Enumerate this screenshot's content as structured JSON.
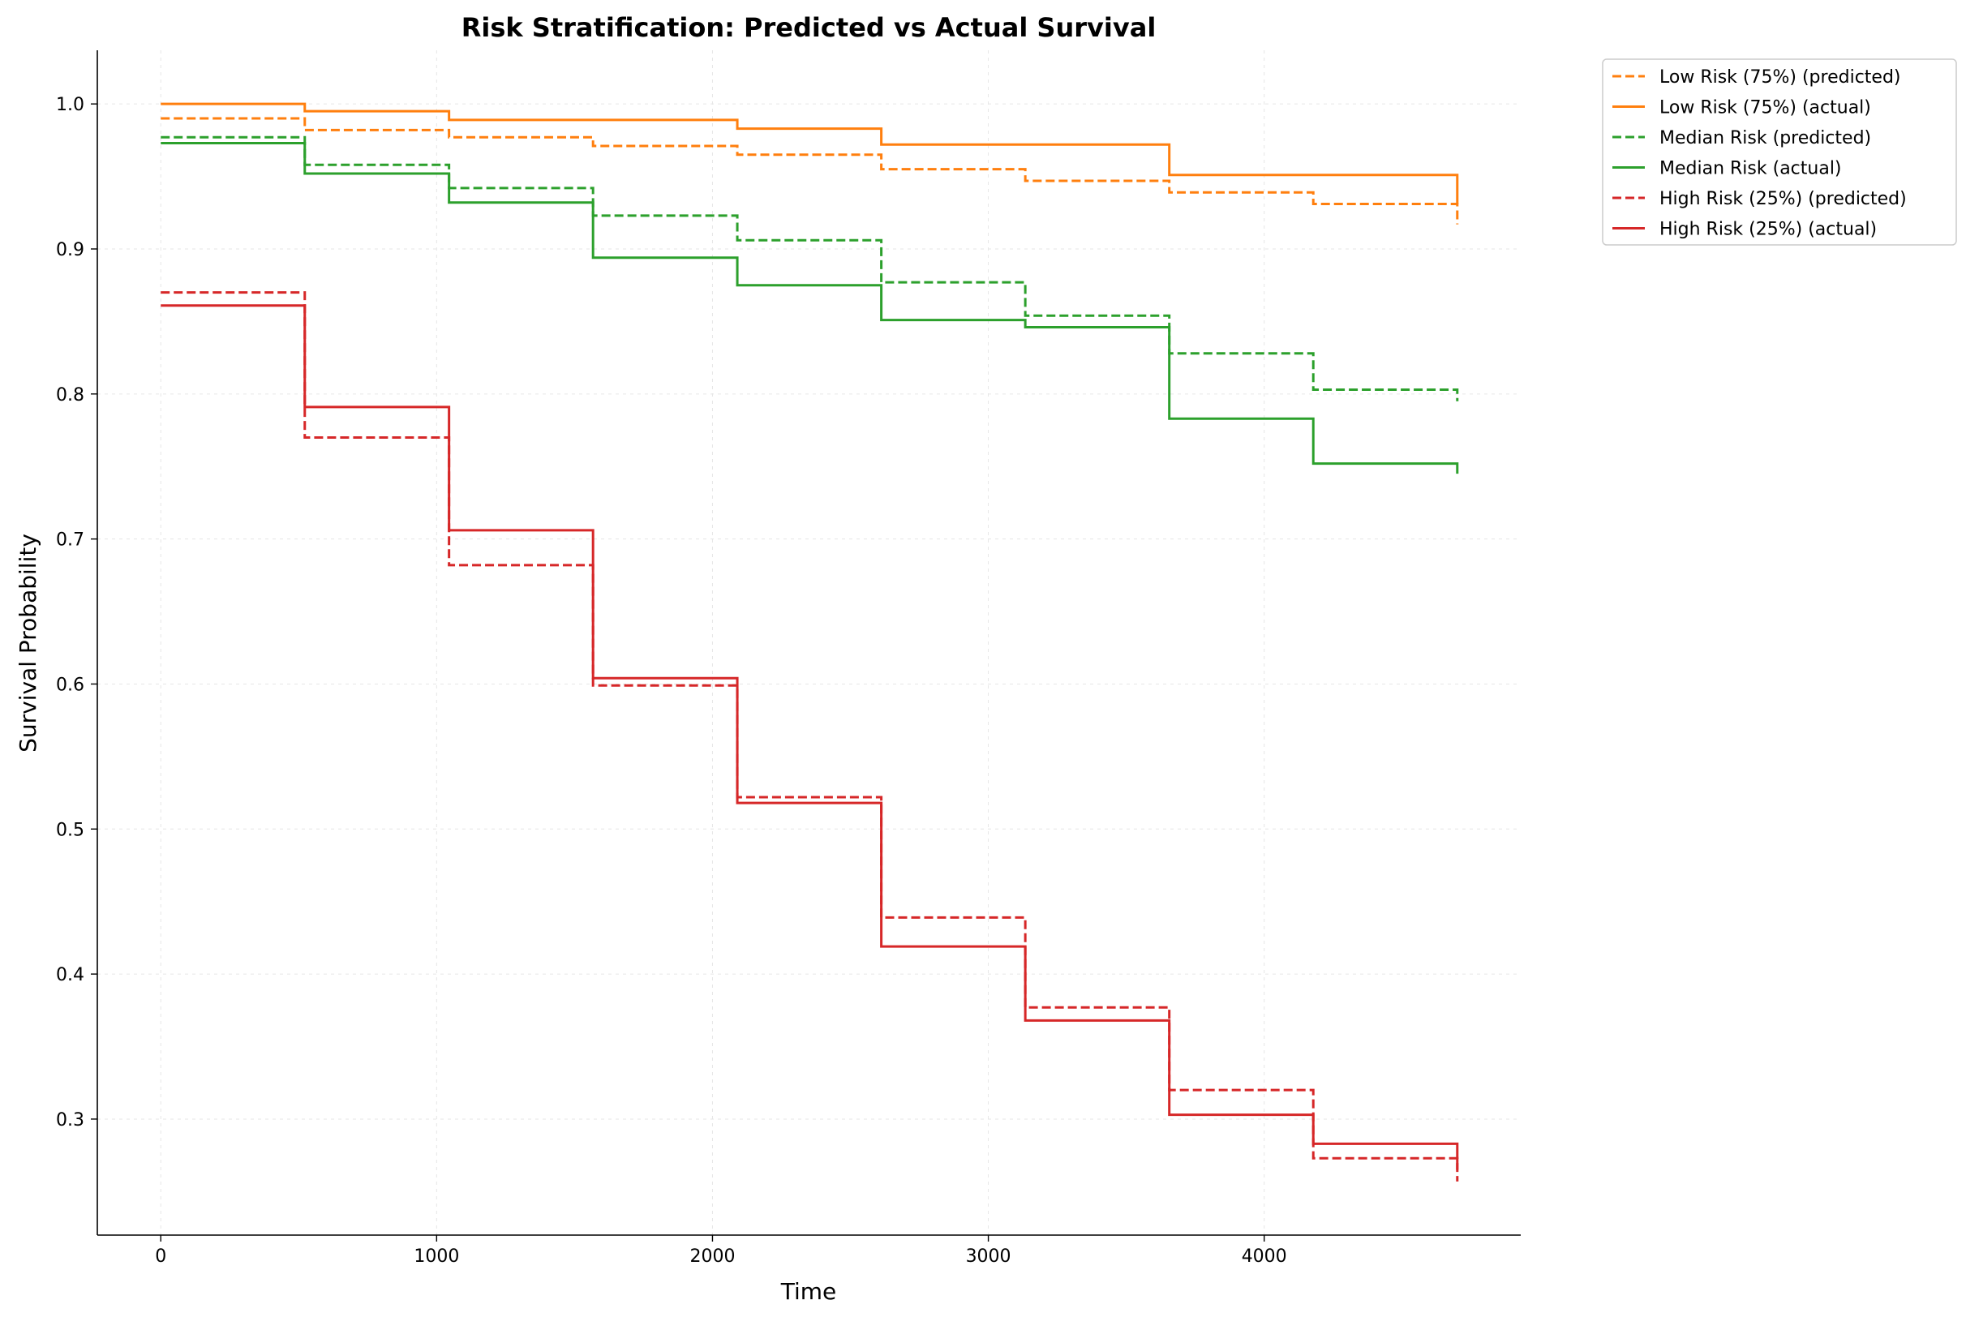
{
  "chart_data": {
    "type": "line",
    "step": "post",
    "title": "Risk Stratification: Predicted vs Actual Survival",
    "xlabel": "Time",
    "ylabel": "Survival Probability",
    "xlim": [
      -230,
      4930
    ],
    "ylim": [
      0.22,
      1.037
    ],
    "xticks": [
      0,
      1000,
      2000,
      3000,
      4000
    ],
    "yticks": [
      0.3,
      0.4,
      0.5,
      0.6,
      0.7,
      0.8,
      0.9,
      1.0
    ],
    "grid": true,
    "legend_position": "outside-top-right",
    "x": [
      0,
      522,
      1045,
      1567,
      2090,
      2612,
      3134,
      3656,
      4178,
      4700
    ],
    "series": [
      {
        "name": "Low Risk (75%) (predicted)",
        "color": "#ff7f0e",
        "style": "dashed",
        "y": [
          0.99,
          0.982,
          0.977,
          0.971,
          0.965,
          0.955,
          0.947,
          0.939,
          0.931,
          0.917
        ]
      },
      {
        "name": "Low Risk (75%) (actual)",
        "color": "#ff7f0e",
        "style": "solid",
        "y": [
          1.0,
          0.995,
          0.989,
          0.989,
          0.983,
          0.972,
          0.972,
          0.951,
          0.951,
          0.931
        ]
      },
      {
        "name": "Median Risk (predicted)",
        "color": "#2ca02c",
        "style": "dashed",
        "y": [
          0.977,
          0.958,
          0.942,
          0.923,
          0.906,
          0.877,
          0.854,
          0.828,
          0.803,
          0.795
        ]
      },
      {
        "name": "Median Risk (actual)",
        "color": "#2ca02c",
        "style": "solid",
        "y": [
          0.973,
          0.952,
          0.932,
          0.894,
          0.875,
          0.851,
          0.846,
          0.783,
          0.752,
          0.745
        ]
      },
      {
        "name": "High Risk (25%) (predicted)",
        "color": "#d62728",
        "style": "dashed",
        "y": [
          0.87,
          0.77,
          0.682,
          0.599,
          0.522,
          0.439,
          0.377,
          0.32,
          0.273,
          0.257
        ]
      },
      {
        "name": "High Risk (25%) (actual)",
        "color": "#d62728",
        "style": "solid",
        "y": [
          0.861,
          0.791,
          0.706,
          0.604,
          0.518,
          0.419,
          0.368,
          0.303,
          0.283,
          0.265
        ]
      }
    ]
  }
}
